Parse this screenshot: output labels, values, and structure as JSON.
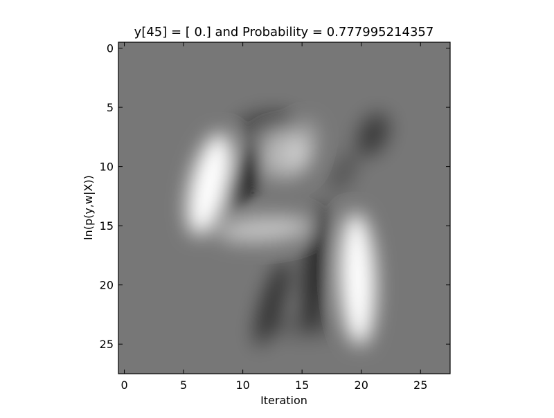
{
  "chart_data": {
    "type": "heatmap",
    "title": "y[45] = [ 0.] and Probability = 0.777995214357",
    "xlabel": "Iteration",
    "ylabel": "ln(p(y,w|X))",
    "xlim": [
      -0.5,
      27.5
    ],
    "ylim": [
      27.5,
      -0.5
    ],
    "x_ticks": [
      0,
      5,
      10,
      15,
      20,
      25
    ],
    "y_ticks": [
      0,
      5,
      10,
      15,
      20,
      25
    ],
    "x_tick_labels": [
      "0",
      "5",
      "10",
      "15",
      "20",
      "25"
    ],
    "y_tick_labels": [
      "0",
      "5",
      "10",
      "15",
      "20",
      "25"
    ],
    "colormap": "gray",
    "background_color": "#777777",
    "grid": false,
    "features": [
      {
        "x": 7.2,
        "y": 11.5,
        "rx": 1.6,
        "ry": 4.4,
        "angle": 14,
        "value": 1.0
      },
      {
        "x": 10.2,
        "y": 10.8,
        "rx": 1.1,
        "ry": 3.2,
        "angle": 26,
        "value": -1.0
      },
      {
        "x": 12.0,
        "y": 6.4,
        "rx": 2.6,
        "ry": 1.0,
        "angle": -6,
        "value": -0.45
      },
      {
        "x": 13.5,
        "y": 9.0,
        "rx": 2.3,
        "ry": 2.0,
        "angle": 0,
        "value": 0.45
      },
      {
        "x": 11.8,
        "y": 15.3,
        "rx": 4.0,
        "ry": 1.1,
        "angle": -4,
        "value": 0.55
      },
      {
        "x": 15.0,
        "y": 8.2,
        "rx": 1.2,
        "ry": 2.2,
        "angle": 20,
        "value": 0.3
      },
      {
        "x": 16.2,
        "y": 18.5,
        "rx": 1.0,
        "ry": 5.4,
        "angle": 5,
        "value": -0.7
      },
      {
        "x": 12.5,
        "y": 21.5,
        "rx": 0.9,
        "ry": 3.8,
        "angle": 18,
        "value": -0.6
      },
      {
        "x": 19.7,
        "y": 19.5,
        "rx": 1.5,
        "ry": 5.6,
        "angle": -2,
        "value": 1.0
      },
      {
        "x": 21.0,
        "y": 7.3,
        "rx": 1.2,
        "ry": 1.9,
        "angle": 25,
        "value": -0.5
      },
      {
        "x": 18.5,
        "y": 10.5,
        "rx": 0.8,
        "ry": 2.0,
        "angle": 30,
        "value": -0.3
      },
      {
        "x": 15.2,
        "y": 23.5,
        "rx": 3.0,
        "ry": 1.0,
        "angle": 0,
        "value": -0.2
      }
    ]
  }
}
